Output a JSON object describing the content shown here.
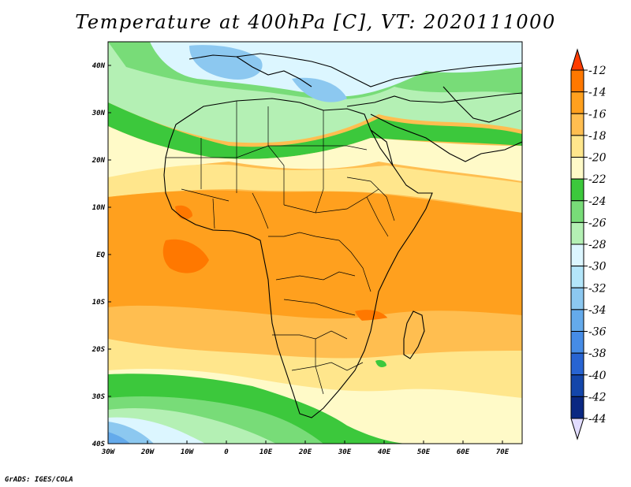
{
  "title": "Temperature at 400hPa [C], VT: 2020111000",
  "footer": "GrADS: IGES/COLA",
  "map": {
    "lon_range": [
      -30,
      75
    ],
    "lat_range": [
      -40,
      45
    ],
    "x_ticks": [
      "30W",
      "20W",
      "10W",
      "0",
      "10E",
      "20E",
      "30E",
      "40E",
      "50E",
      "60E",
      "70E"
    ],
    "y_ticks": [
      "40N",
      "30N",
      "20N",
      "10N",
      "EQ",
      "10S",
      "20S",
      "30S",
      "40S"
    ],
    "field_bands": [
      {
        "range": "-28 to -30",
        "color": "#dcf6ff"
      },
      {
        "range": "-26 to -28",
        "color": "#b4f0b4"
      },
      {
        "range": "-24 to -26",
        "color": "#78dc78"
      },
      {
        "range": "-22 to -24",
        "color": "#3cc83c"
      },
      {
        "range": "-20 to -22",
        "color": "#fffac8"
      },
      {
        "range": "-18 to -20",
        "color": "#ffe68c"
      },
      {
        "range": "-16 to -18",
        "color": "#ffbe50"
      },
      {
        "range": "-14 to -16",
        "color": "#ffa01e"
      },
      {
        "range": "-12 to -14",
        "color": "#ff7800"
      }
    ]
  },
  "colorbar": {
    "labels": [
      "-12",
      "-14",
      "-16",
      "-18",
      "-20",
      "-22",
      "-24",
      "-26",
      "-28",
      "-30",
      "-32",
      "-34",
      "-36",
      "-38",
      "-40",
      "-42",
      "-44"
    ],
    "colors": [
      "#ff3c00",
      "#ff7800",
      "#ffa01e",
      "#ffbe50",
      "#ffe68c",
      "#fffac8",
      "#3cc83c",
      "#78dc78",
      "#b4f0b4",
      "#dcf6ff",
      "#b4e6fa",
      "#8cc8f0",
      "#64aaeb",
      "#468ce6",
      "#2864d2",
      "#1446aa",
      "#0a2882",
      "#e1dcff"
    ]
  }
}
